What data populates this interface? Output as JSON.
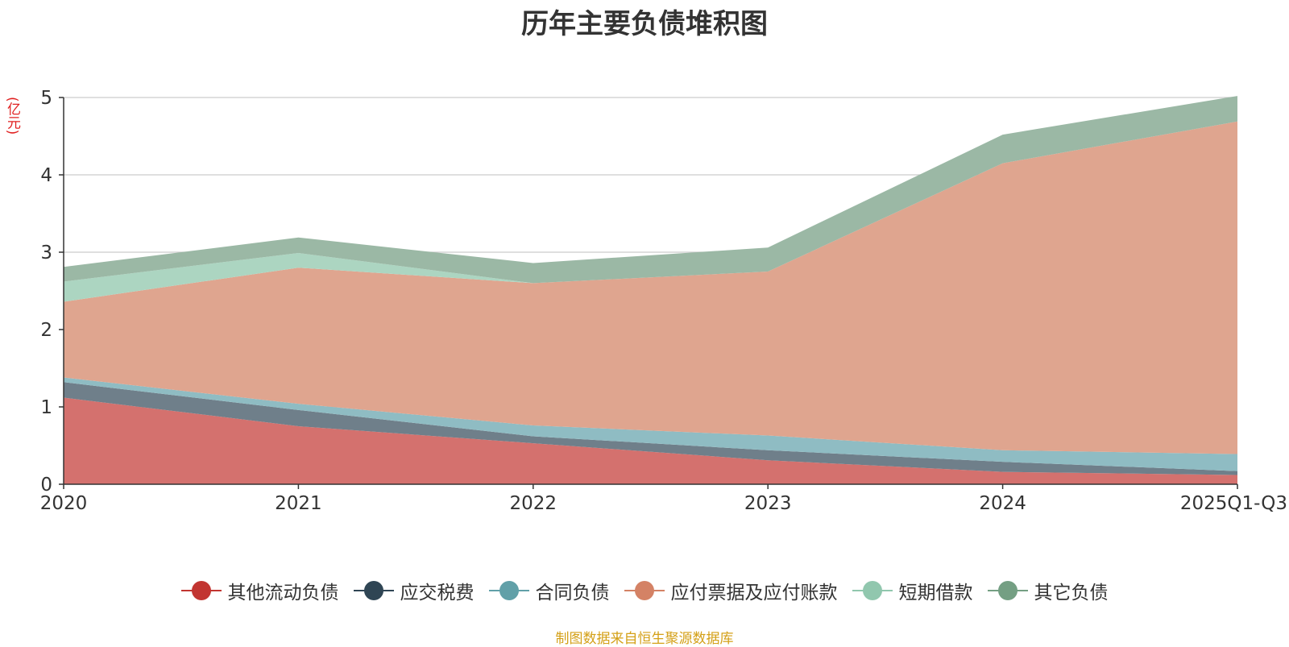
{
  "title": "历年主要负债堆积图",
  "unit": "(亿元)",
  "source": "制图数据来自恒生聚源数据库",
  "chart_data": {
    "type": "area",
    "stacked": true,
    "title": "历年主要负债堆积图",
    "ylabel": "(亿元)",
    "categories": [
      "2020",
      "2021",
      "2022",
      "2023",
      "2024",
      "2025Q1-Q3"
    ],
    "ylim": [
      0,
      5
    ],
    "yticks": [
      0,
      1,
      2,
      3,
      4,
      5
    ],
    "grid": true,
    "legend_position": "bottom",
    "series": [
      {
        "name": "其他流动负债",
        "color": "#c23531",
        "fill": "#d4716e",
        "values": [
          1.12,
          0.75,
          0.53,
          0.31,
          0.16,
          0.12
        ]
      },
      {
        "name": "应交税费",
        "color": "#2f4554",
        "fill": "#6f7f8a",
        "values": [
          0.2,
          0.21,
          0.09,
          0.13,
          0.13,
          0.05
        ]
      },
      {
        "name": "合同负债",
        "color": "#61a0a8",
        "fill": "#8fbcc3",
        "values": [
          0.06,
          0.08,
          0.14,
          0.19,
          0.15,
          0.22
        ]
      },
      {
        "name": "应付票据及应付账款",
        "color": "#d48265",
        "fill": "#dfa58f",
        "values": [
          0.98,
          1.76,
          1.84,
          2.12,
          3.71,
          4.3
        ]
      },
      {
        "name": "短期借款",
        "color": "#91c7ae",
        "fill": "#acd5c1",
        "values": [
          0.26,
          0.19,
          0.0,
          0.0,
          0.0,
          0.0
        ]
      },
      {
        "name": "其它负债",
        "color": "#749f83",
        "fill": "#9bb8a5",
        "values": [
          0.19,
          0.2,
          0.26,
          0.31,
          0.37,
          0.33
        ]
      }
    ]
  }
}
